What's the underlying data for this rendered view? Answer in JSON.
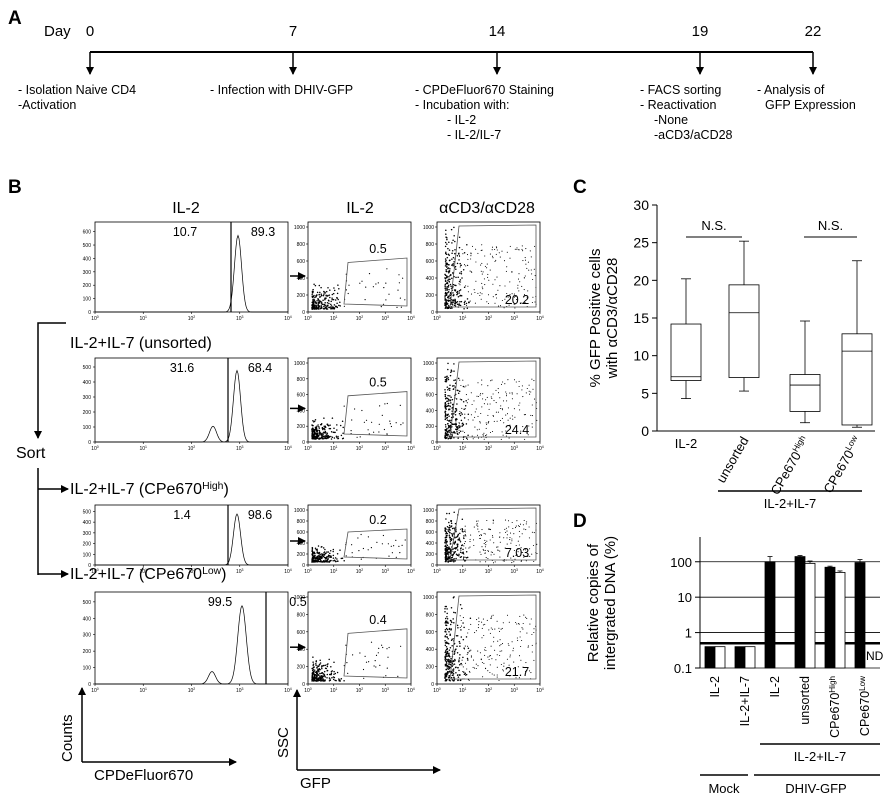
{
  "panel_a": {
    "label": "A",
    "day_label": "Day",
    "days": [
      0,
      7,
      14,
      19,
      22
    ],
    "notes": [
      [
        "- Isolation Naive CD4",
        "-Activation"
      ],
      [
        "- Infection with DHIV-GFP"
      ],
      [
        "- CPDeFluor670 Staining",
        "- Incubation with:",
        "- IL-2",
        "- IL-2/IL-7"
      ],
      [
        "- FACS sorting",
        "- Reactivation",
        "-None",
        "-aCD3/aCD28"
      ],
      [
        "- Analysis of",
        "GFP Expression"
      ]
    ]
  },
  "panel_b": {
    "label": "B",
    "column_headers": [
      "IL-2",
      "IL-2",
      "αCD3/αCD28"
    ],
    "sort_label": "Sort",
    "axis_labels": {
      "counts": "Counts",
      "cpd": "CPDeFluor670",
      "ssc": "SSC",
      "gfp": "GFP"
    },
    "log_base": "10",
    "log_exponents": [
      0,
      1,
      2,
      3,
      4
    ],
    "dot_yticks": [
      0,
      200,
      400,
      600,
      800,
      1000
    ],
    "rows": [
      {
        "percent_low": 10.7,
        "percent_high": 89.3,
        "gfp_il2": 0.5,
        "gfp_cd3": 20.2,
        "hist_yticks": [
          0,
          100,
          200,
          300,
          400,
          500,
          600
        ]
      },
      {
        "label": [
          {
            "text": "IL-2+IL-7 (unsorted)"
          }
        ],
        "percent_low": 31.6,
        "percent_high": 68.4,
        "gfp_il2": 0.5,
        "gfp_cd3": 24.4,
        "hist_yticks": [
          0,
          100,
          200,
          300,
          400,
          500
        ]
      },
      {
        "label": [
          {
            "text": "IL-2+IL-7 (CPe670"
          },
          {
            "sup": "High"
          },
          {
            "text": ")"
          }
        ],
        "percent_low": 1.4,
        "percent_high": 98.6,
        "gfp_il2": 0.2,
        "gfp_cd3": 7.03,
        "hist_yticks": [
          0,
          100,
          200,
          300,
          400,
          500
        ]
      },
      {
        "label": [
          {
            "text": "IL-2+IL-7 (CPe670"
          },
          {
            "sup": "Low"
          },
          {
            "text": ")"
          }
        ],
        "percent_low": 99.5,
        "percent_high": 0.5,
        "gfp_il2": 0.4,
        "gfp_cd3": 21.7,
        "hist_yticks": [
          0,
          100,
          200,
          300,
          400,
          500
        ]
      }
    ]
  },
  "chart_data": [
    {
      "type": "box",
      "label": "C",
      "ylabel": [
        "% GFP Positive cells",
        "with αCD3/αCD28"
      ],
      "categories": [
        {
          "text": "IL-2"
        },
        {
          "text": "unsorted"
        },
        {
          "text": "CPe670",
          "sup": "High"
        },
        {
          "text": "CPe670",
          "sup": "Low"
        }
      ],
      "whislo": [
        4.3,
        5.3,
        1.1,
        0.5
      ],
      "q1": [
        6.7,
        7.1,
        2.6,
        0.8
      ],
      "median": [
        7.2,
        15.7,
        6.1,
        10.6
      ],
      "q3": [
        14.2,
        19.4,
        7.5,
        12.9
      ],
      "whishi": [
        20.2,
        25.2,
        14.6,
        22.6
      ],
      "ylim": [
        0,
        30
      ],
      "yticks": [
        0,
        5,
        10,
        15,
        20,
        25,
        30
      ],
      "annotations": [
        "N.S.",
        "N.S."
      ],
      "group_label": "IL-2+IL-7",
      "color": "#000000"
    },
    {
      "type": "bar",
      "label": "D",
      "ylabel": [
        "Relative copies of",
        "intergrated DNA (%)"
      ],
      "log_scale": true,
      "grid": true,
      "ylim": [
        0.1,
        500
      ],
      "yticks": [
        0.1,
        1,
        10,
        100
      ],
      "detection_limit": 0.5,
      "categories": [
        {
          "text": "IL-2"
        },
        {
          "text": "IL-2+IL-7"
        },
        {
          "text": "IL-2"
        },
        {
          "text": "unsorted"
        },
        {
          "text": "CPe670",
          "sup": "High"
        },
        {
          "text": "CPe670",
          "sup": "Low"
        }
      ],
      "series": [
        {
          "color": "#000000",
          "values": [
            0.4,
            0.4,
            100,
            140,
            70,
            95
          ],
          "errors": [
            null,
            null,
            40,
            10,
            5,
            20
          ]
        },
        {
          "color": "#ffffff",
          "values": [
            0.4,
            0.4,
            null,
            90,
            50,
            null
          ],
          "errors": [
            null,
            null,
            null,
            15,
            5,
            null
          ]
        }
      ],
      "annotations": [
        "ND"
      ],
      "groups": [
        "IL-2+IL-7",
        "Mock",
        "DHIV-GFP"
      ]
    }
  ]
}
